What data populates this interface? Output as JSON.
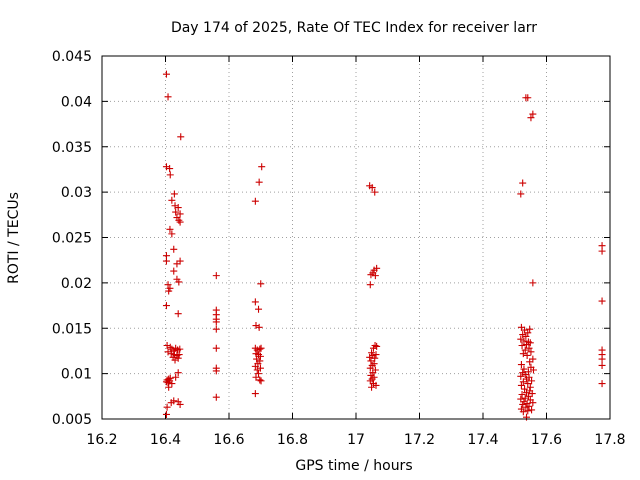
{
  "chart_data": {
    "type": "scatter",
    "title": "Day 174 of 2025, Rate Of TEC Index for receiver larr",
    "xlabel": "GPS time / hours",
    "ylabel": "ROTI / TECUs",
    "xlim": [
      16.2,
      17.8
    ],
    "ylim": [
      0.005,
      0.045
    ],
    "xticks": [
      16.2,
      16.4,
      16.6,
      16.8,
      17,
      17.2,
      17.4,
      17.6,
      17.8
    ],
    "xtick_labels": [
      "16.2",
      "16.4",
      "16.6",
      "16.8",
      "17",
      "17.2",
      "17.4",
      "17.6",
      "17.8"
    ],
    "yticks": [
      0.005,
      0.01,
      0.015,
      0.02,
      0.025,
      0.03,
      0.035,
      0.04,
      0.045
    ],
    "ytick_labels": [
      "0.005",
      "0.01",
      "0.015",
      "0.02",
      "0.025",
      "0.03",
      "0.035",
      "0.04",
      "0.045"
    ],
    "grid": true,
    "marker": "plus",
    "color": "#cc0000",
    "series": [
      {
        "name": "ROTI",
        "points": [
          [
            16.403,
            0.043
          ],
          [
            16.408,
            0.0405
          ],
          [
            16.448,
            0.0361
          ],
          [
            16.403,
            0.0328
          ],
          [
            16.413,
            0.0326
          ],
          [
            16.415,
            0.0319
          ],
          [
            16.428,
            0.0298
          ],
          [
            16.42,
            0.0291
          ],
          [
            16.43,
            0.0285
          ],
          [
            16.44,
            0.0283
          ],
          [
            16.432,
            0.0278
          ],
          [
            16.446,
            0.0276
          ],
          [
            16.436,
            0.0272
          ],
          [
            16.442,
            0.0269
          ],
          [
            16.446,
            0.0267
          ],
          [
            16.414,
            0.0259
          ],
          [
            16.42,
            0.0254
          ],
          [
            16.426,
            0.0237
          ],
          [
            16.403,
            0.023
          ],
          [
            16.403,
            0.0224
          ],
          [
            16.446,
            0.0224
          ],
          [
            16.436,
            0.0221
          ],
          [
            16.426,
            0.0213
          ],
          [
            16.436,
            0.0204
          ],
          [
            16.442,
            0.0201
          ],
          [
            16.408,
            0.0198
          ],
          [
            16.414,
            0.0194
          ],
          [
            16.41,
            0.0191
          ],
          [
            16.403,
            0.0175
          ],
          [
            16.44,
            0.0166
          ],
          [
            16.405,
            0.0131
          ],
          [
            16.415,
            0.0129
          ],
          [
            16.42,
            0.0127
          ],
          [
            16.426,
            0.0125
          ],
          [
            16.432,
            0.0128
          ],
          [
            16.438,
            0.0126
          ],
          [
            16.445,
            0.0127
          ],
          [
            16.408,
            0.0124
          ],
          [
            16.418,
            0.0122
          ],
          [
            16.428,
            0.0121
          ],
          [
            16.436,
            0.012
          ],
          [
            16.443,
            0.0121
          ],
          [
            16.424,
            0.0118
          ],
          [
            16.44,
            0.0117
          ],
          [
            16.43,
            0.0115
          ],
          [
            16.44,
            0.0101
          ],
          [
            16.432,
            0.0096
          ],
          [
            16.415,
            0.0095
          ],
          [
            16.41,
            0.0094
          ],
          [
            16.405,
            0.0093
          ],
          [
            16.403,
            0.0091
          ],
          [
            16.408,
            0.009
          ],
          [
            16.413,
            0.0092
          ],
          [
            16.42,
            0.0089
          ],
          [
            16.41,
            0.0085
          ],
          [
            16.426,
            0.007
          ],
          [
            16.44,
            0.0069
          ],
          [
            16.418,
            0.0068
          ],
          [
            16.446,
            0.0066
          ],
          [
            16.405,
            0.0063
          ],
          [
            16.403,
            0.0055
          ],
          [
            16.56,
            0.0208
          ],
          [
            16.56,
            0.017
          ],
          [
            16.56,
            0.0165
          ],
          [
            16.56,
            0.016
          ],
          [
            16.56,
            0.0157
          ],
          [
            16.56,
            0.0149
          ],
          [
            16.56,
            0.0128
          ],
          [
            16.56,
            0.0106
          ],
          [
            16.56,
            0.0103
          ],
          [
            16.56,
            0.0074
          ],
          [
            16.703,
            0.0328
          ],
          [
            16.695,
            0.0311
          ],
          [
            16.683,
            0.029
          ],
          [
            16.7,
            0.0199
          ],
          [
            16.683,
            0.0179
          ],
          [
            16.693,
            0.0171
          ],
          [
            16.685,
            0.0153
          ],
          [
            16.695,
            0.0151
          ],
          [
            16.683,
            0.0128
          ],
          [
            16.689,
            0.0126
          ],
          [
            16.697,
            0.0127
          ],
          [
            16.701,
            0.0128
          ],
          [
            16.685,
            0.0122
          ],
          [
            16.693,
            0.0121
          ],
          [
            16.699,
            0.0119
          ],
          [
            16.687,
            0.0116
          ],
          [
            16.697,
            0.0114
          ],
          [
            16.691,
            0.0111
          ],
          [
            16.683,
            0.0108
          ],
          [
            16.699,
            0.0106
          ],
          [
            16.689,
            0.0104
          ],
          [
            16.693,
            0.01
          ],
          [
            16.685,
            0.0096
          ],
          [
            16.697,
            0.0093
          ],
          [
            16.701,
            0.0092
          ],
          [
            16.683,
            0.0078
          ],
          [
            17.043,
            0.0307
          ],
          [
            17.051,
            0.0305
          ],
          [
            17.059,
            0.03
          ],
          [
            17.065,
            0.0216
          ],
          [
            17.057,
            0.0214
          ],
          [
            17.053,
            0.0211
          ],
          [
            17.047,
            0.0209
          ],
          [
            17.061,
            0.0208
          ],
          [
            17.045,
            0.0198
          ],
          [
            17.06,
            0.0131
          ],
          [
            17.065,
            0.013
          ],
          [
            17.055,
            0.0128
          ],
          [
            17.049,
            0.0123
          ],
          [
            17.063,
            0.0121
          ],
          [
            17.053,
            0.012
          ],
          [
            17.043,
            0.0118
          ],
          [
            17.059,
            0.0117
          ],
          [
            17.047,
            0.0114
          ],
          [
            17.057,
            0.0111
          ],
          [
            17.051,
            0.0109
          ],
          [
            17.045,
            0.0106
          ],
          [
            17.061,
            0.0104
          ],
          [
            17.053,
            0.0101
          ],
          [
            17.047,
            0.0098
          ],
          [
            17.057,
            0.0096
          ],
          [
            17.051,
            0.0094
          ],
          [
            17.045,
            0.0092
          ],
          [
            17.055,
            0.0089
          ],
          [
            17.063,
            0.0087
          ],
          [
            17.049,
            0.0085
          ],
          [
            17.535,
            0.0404
          ],
          [
            17.541,
            0.0404
          ],
          [
            17.551,
            0.0382
          ],
          [
            17.557,
            0.0386
          ],
          [
            17.525,
            0.031
          ],
          [
            17.519,
            0.0298
          ],
          [
            17.557,
            0.02
          ],
          [
            17.521,
            0.0151
          ],
          [
            17.531,
            0.0148
          ],
          [
            17.547,
            0.0149
          ],
          [
            17.541,
            0.0145
          ],
          [
            17.525,
            0.0143
          ],
          [
            17.535,
            0.0141
          ],
          [
            17.519,
            0.0138
          ],
          [
            17.529,
            0.0136
          ],
          [
            17.543,
            0.0135
          ],
          [
            17.549,
            0.0134
          ],
          [
            17.537,
            0.0132
          ],
          [
            17.523,
            0.0131
          ],
          [
            17.545,
            0.0128
          ],
          [
            17.533,
            0.0126
          ],
          [
            17.551,
            0.0124
          ],
          [
            17.527,
            0.0122
          ],
          [
            17.539,
            0.012
          ],
          [
            17.557,
            0.0116
          ],
          [
            17.547,
            0.0113
          ],
          [
            17.521,
            0.011
          ],
          [
            17.551,
            0.0107
          ],
          [
            17.529,
            0.0105
          ],
          [
            17.559,
            0.0104
          ],
          [
            17.543,
            0.0102
          ],
          [
            17.525,
            0.0101
          ],
          [
            17.533,
            0.0099
          ],
          [
            17.519,
            0.0097
          ],
          [
            17.545,
            0.0096
          ],
          [
            17.537,
            0.0094
          ],
          [
            17.553,
            0.0092
          ],
          [
            17.527,
            0.0091
          ],
          [
            17.541,
            0.0089
          ],
          [
            17.521,
            0.0087
          ],
          [
            17.549,
            0.0085
          ],
          [
            17.531,
            0.0083
          ],
          [
            17.547,
            0.0081
          ],
          [
            17.537,
            0.0079
          ],
          [
            17.555,
            0.0078
          ],
          [
            17.523,
            0.0077
          ],
          [
            17.543,
            0.0075
          ],
          [
            17.533,
            0.0073
          ],
          [
            17.519,
            0.0072
          ],
          [
            17.549,
            0.0071
          ],
          [
            17.529,
            0.0069
          ],
          [
            17.557,
            0.0068
          ],
          [
            17.539,
            0.0067
          ],
          [
            17.525,
            0.0066
          ],
          [
            17.545,
            0.0064
          ],
          [
            17.535,
            0.0063
          ],
          [
            17.521,
            0.0061
          ],
          [
            17.553,
            0.006
          ],
          [
            17.541,
            0.0059
          ],
          [
            17.527,
            0.0058
          ],
          [
            17.537,
            0.0052
          ],
          [
            17.775,
            0.0241
          ],
          [
            17.775,
            0.0235
          ],
          [
            17.775,
            0.018
          ],
          [
            17.775,
            0.0126
          ],
          [
            17.775,
            0.0121
          ],
          [
            17.775,
            0.0116
          ],
          [
            17.775,
            0.0109
          ],
          [
            17.775,
            0.0089
          ]
        ]
      }
    ]
  }
}
